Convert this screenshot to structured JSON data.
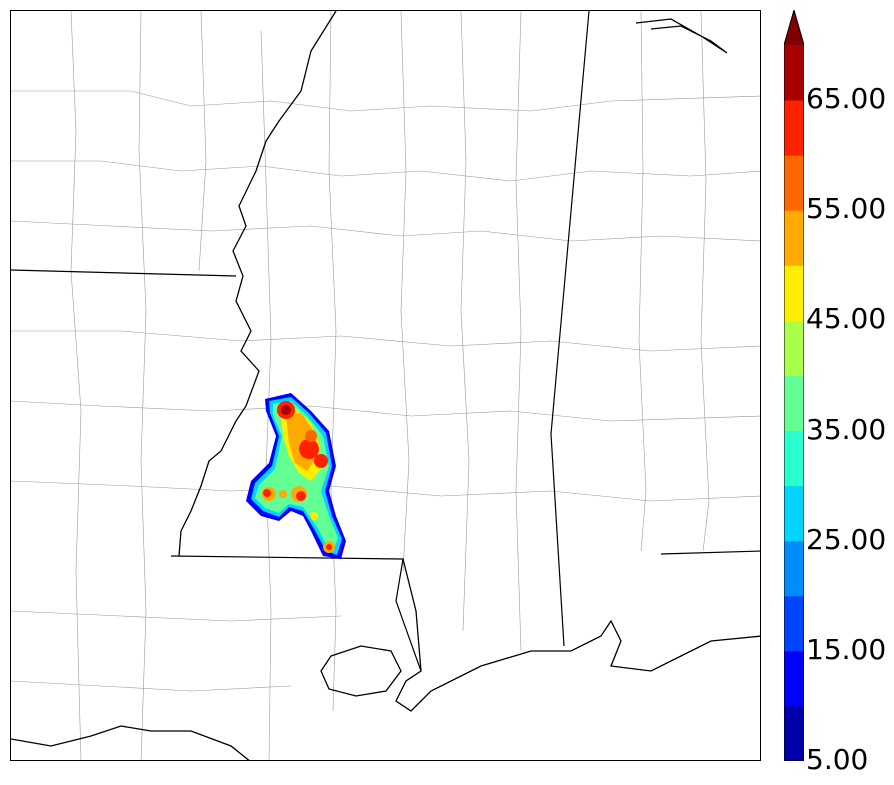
{
  "colorbar": {
    "tick_labels": [
      "5.00",
      "15.00",
      "25.00",
      "35.00",
      "45.00",
      "55.00",
      "65.00"
    ],
    "levels": [
      5,
      10,
      15,
      20,
      25,
      30,
      35,
      40,
      45,
      50,
      55,
      60,
      65,
      70
    ],
    "extend": "max",
    "colors": [
      "#0000a8",
      "#0000ff",
      "#0044ff",
      "#008cff",
      "#00d4ff",
      "#29ffce",
      "#63ff94",
      "#aaff4d",
      "#ffee00",
      "#ffaa00",
      "#ff6600",
      "#ff2200",
      "#a80000"
    ],
    "extend_color": "#800000"
  },
  "map": {
    "style": {
      "state_border_color": "#000000",
      "county_border_color": "#9a9a9a",
      "coast_color": "#000000"
    },
    "reflectivity_region": {
      "description_hidden": true,
      "max_value": 70
    }
  }
}
